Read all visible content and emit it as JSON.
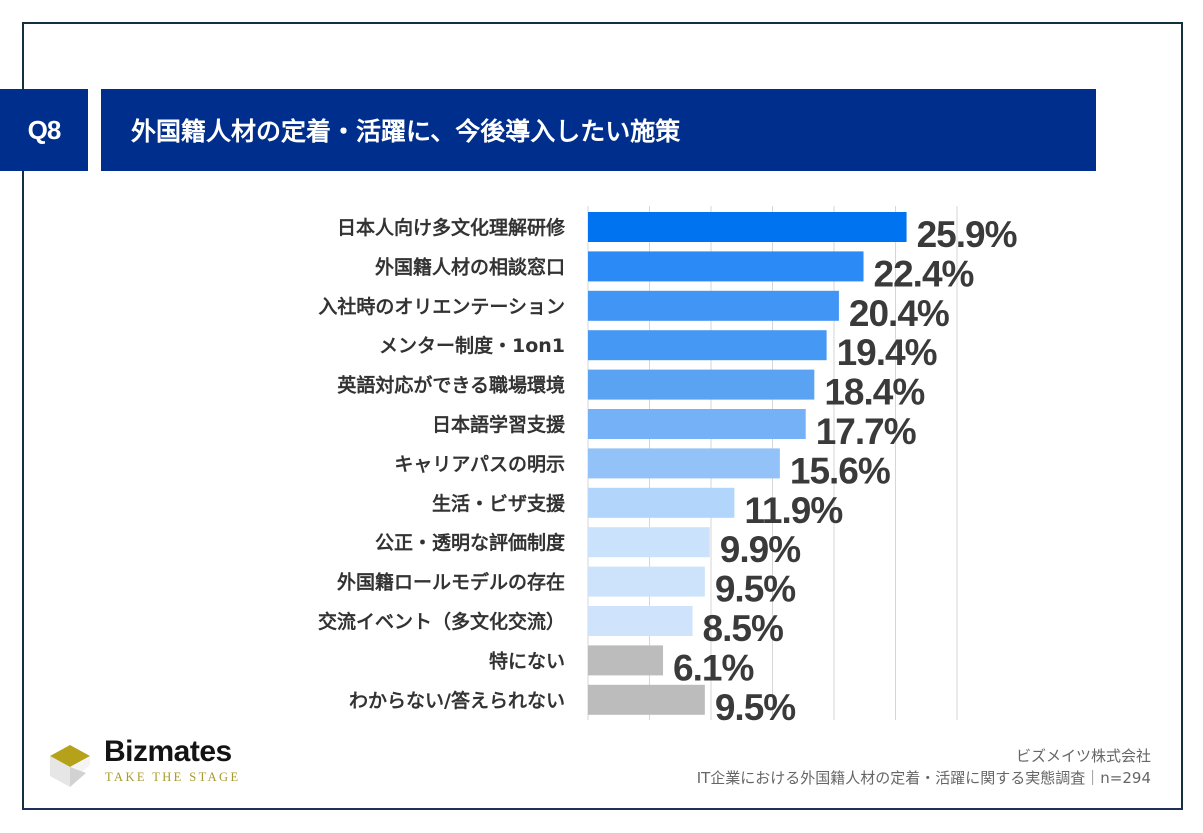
{
  "header": {
    "question_number": "Q8",
    "title": "外国籍人材の定着・活躍に、今後導入したい施策"
  },
  "chart_data": {
    "type": "bar",
    "orientation": "horizontal",
    "title": "外国籍人材の定着・活躍に、今後導入したい施策",
    "xlabel": "",
    "ylabel": "",
    "xlim": [
      0,
      30
    ],
    "grid": true,
    "grid_step": 5,
    "value_suffix": "%",
    "categories": [
      "日本人向け多文化理解研修",
      "外国籍人材の相談窓口",
      "入社時のオリエンテーション",
      "メンター制度・1on1",
      "英語対応ができる職場環境",
      "日本語学習支援",
      "キャリアパスの明示",
      "生活・ビザ支援",
      "公正・透明な評価制度",
      "外国籍ロールモデルの存在",
      "交流イベント（多文化交流）",
      "特にない",
      "わからない/答えられない"
    ],
    "values": [
      25.9,
      22.4,
      20.4,
      19.4,
      18.4,
      17.7,
      15.6,
      11.9,
      9.9,
      9.5,
      8.5,
      6.1,
      9.5
    ],
    "value_labels": [
      "25.9%",
      "22.4%",
      "20.4%",
      "19.4%",
      "18.4%",
      "17.7%",
      "15.6%",
      "11.9%",
      "9.9%",
      "9.5%",
      "8.5%",
      "6.1%",
      "9.5%"
    ],
    "colors": [
      "#0073f0",
      "#2b8af5",
      "#4196f5",
      "#4598f3",
      "#5aa3f3",
      "#74b1f6",
      "#93c2f8",
      "#b2d5fb",
      "#cbe2fc",
      "#cde3fc",
      "#cfe4fc",
      "#bcbcbc",
      "#bcbcbc"
    ]
  },
  "colors": {
    "header_bg": "#002e8c",
    "frame": "#14303c",
    "gridline": "#d6d6d6",
    "logo_gold": "#b5a21a"
  },
  "footer": {
    "logo_name": "Bizmates",
    "logo_tagline": "TAKE THE STAGE",
    "company": "ビズメイツ株式会社",
    "survey": "IT企業における外国籍人材の定着・活躍に関する実態調査｜n=294"
  }
}
